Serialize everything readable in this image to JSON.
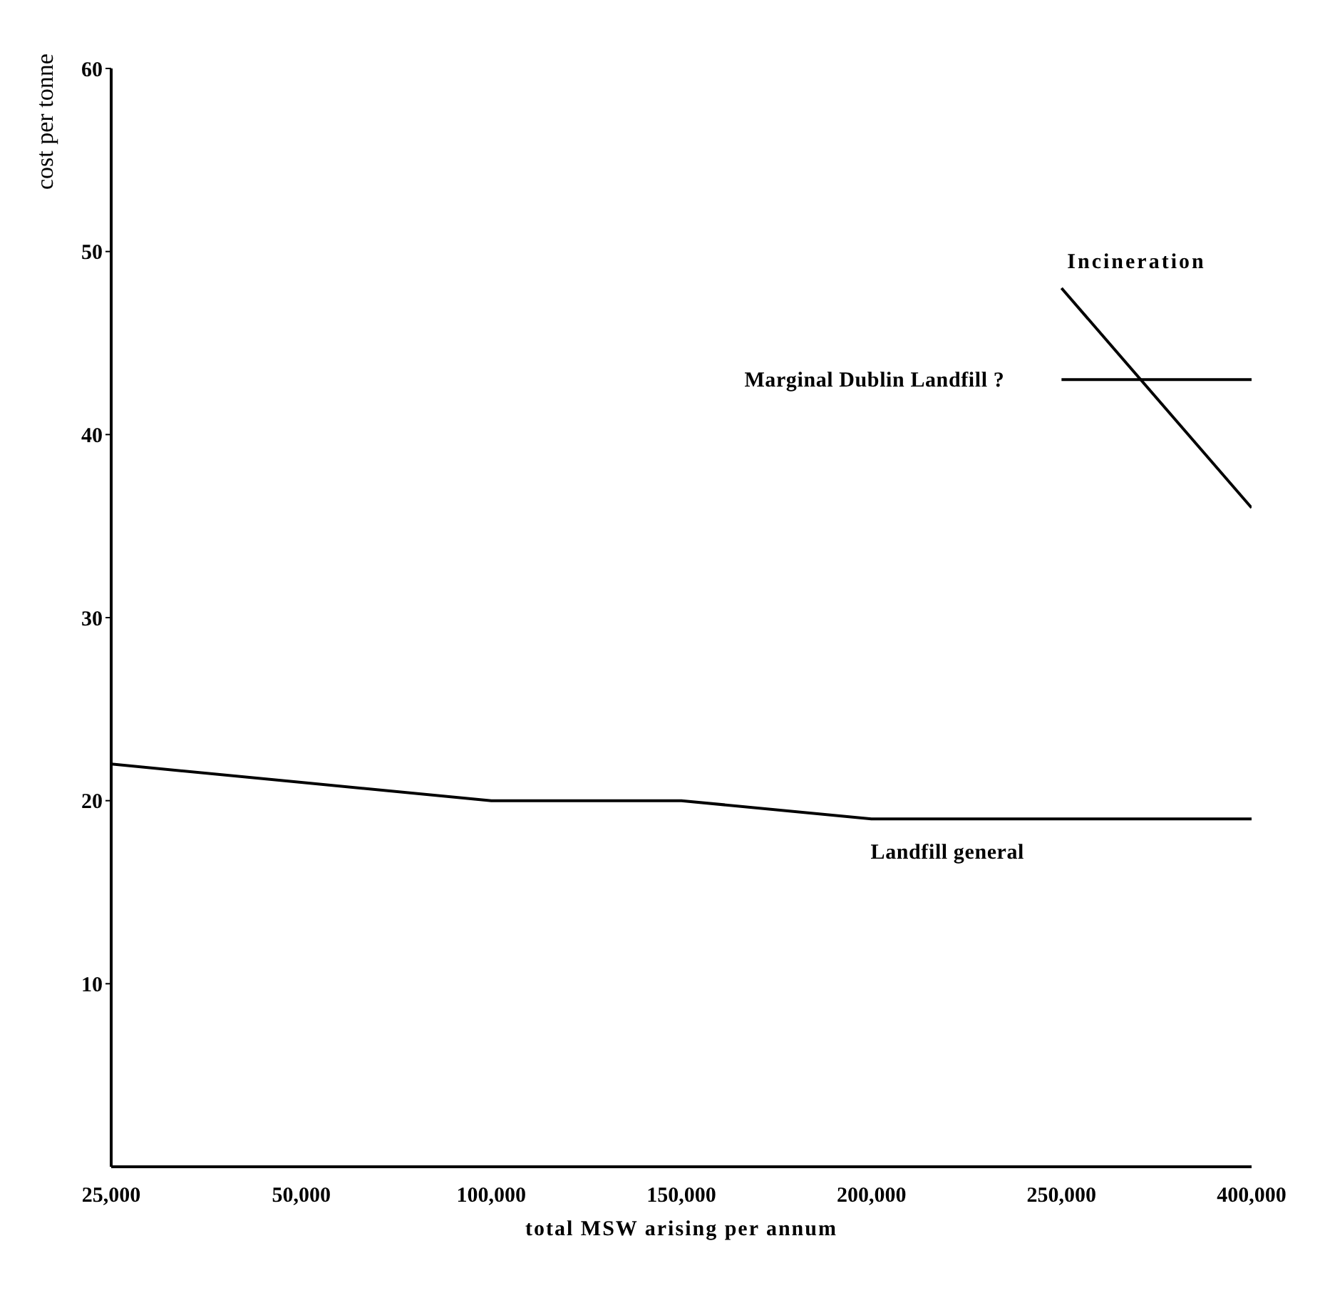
{
  "chart_data": {
    "type": "line",
    "xlabel": "total MSW arising per annum",
    "ylabel": "cost per tonne",
    "categories": [
      "25,000",
      "50,000",
      "100,000",
      "150,000",
      "200,000",
      "250,000",
      "400,000"
    ],
    "series": [
      {
        "name": "Landfill general",
        "color": "#000000",
        "values": [
          22,
          21,
          20,
          20,
          19,
          19,
          19
        ]
      },
      {
        "name": "Marginal Dublin Landfill ?",
        "color": "#000000",
        "values": [
          null,
          null,
          null,
          null,
          null,
          43,
          43
        ]
      },
      {
        "name": "Incineration",
        "color": "#000000",
        "values": [
          null,
          null,
          null,
          null,
          null,
          48,
          36
        ]
      }
    ],
    "ylim": [
      0,
      60
    ],
    "yticks": [
      10,
      20,
      30,
      40,
      50,
      60
    ],
    "grid": false,
    "legend": false,
    "marker": "none",
    "line_style": "solid"
  }
}
